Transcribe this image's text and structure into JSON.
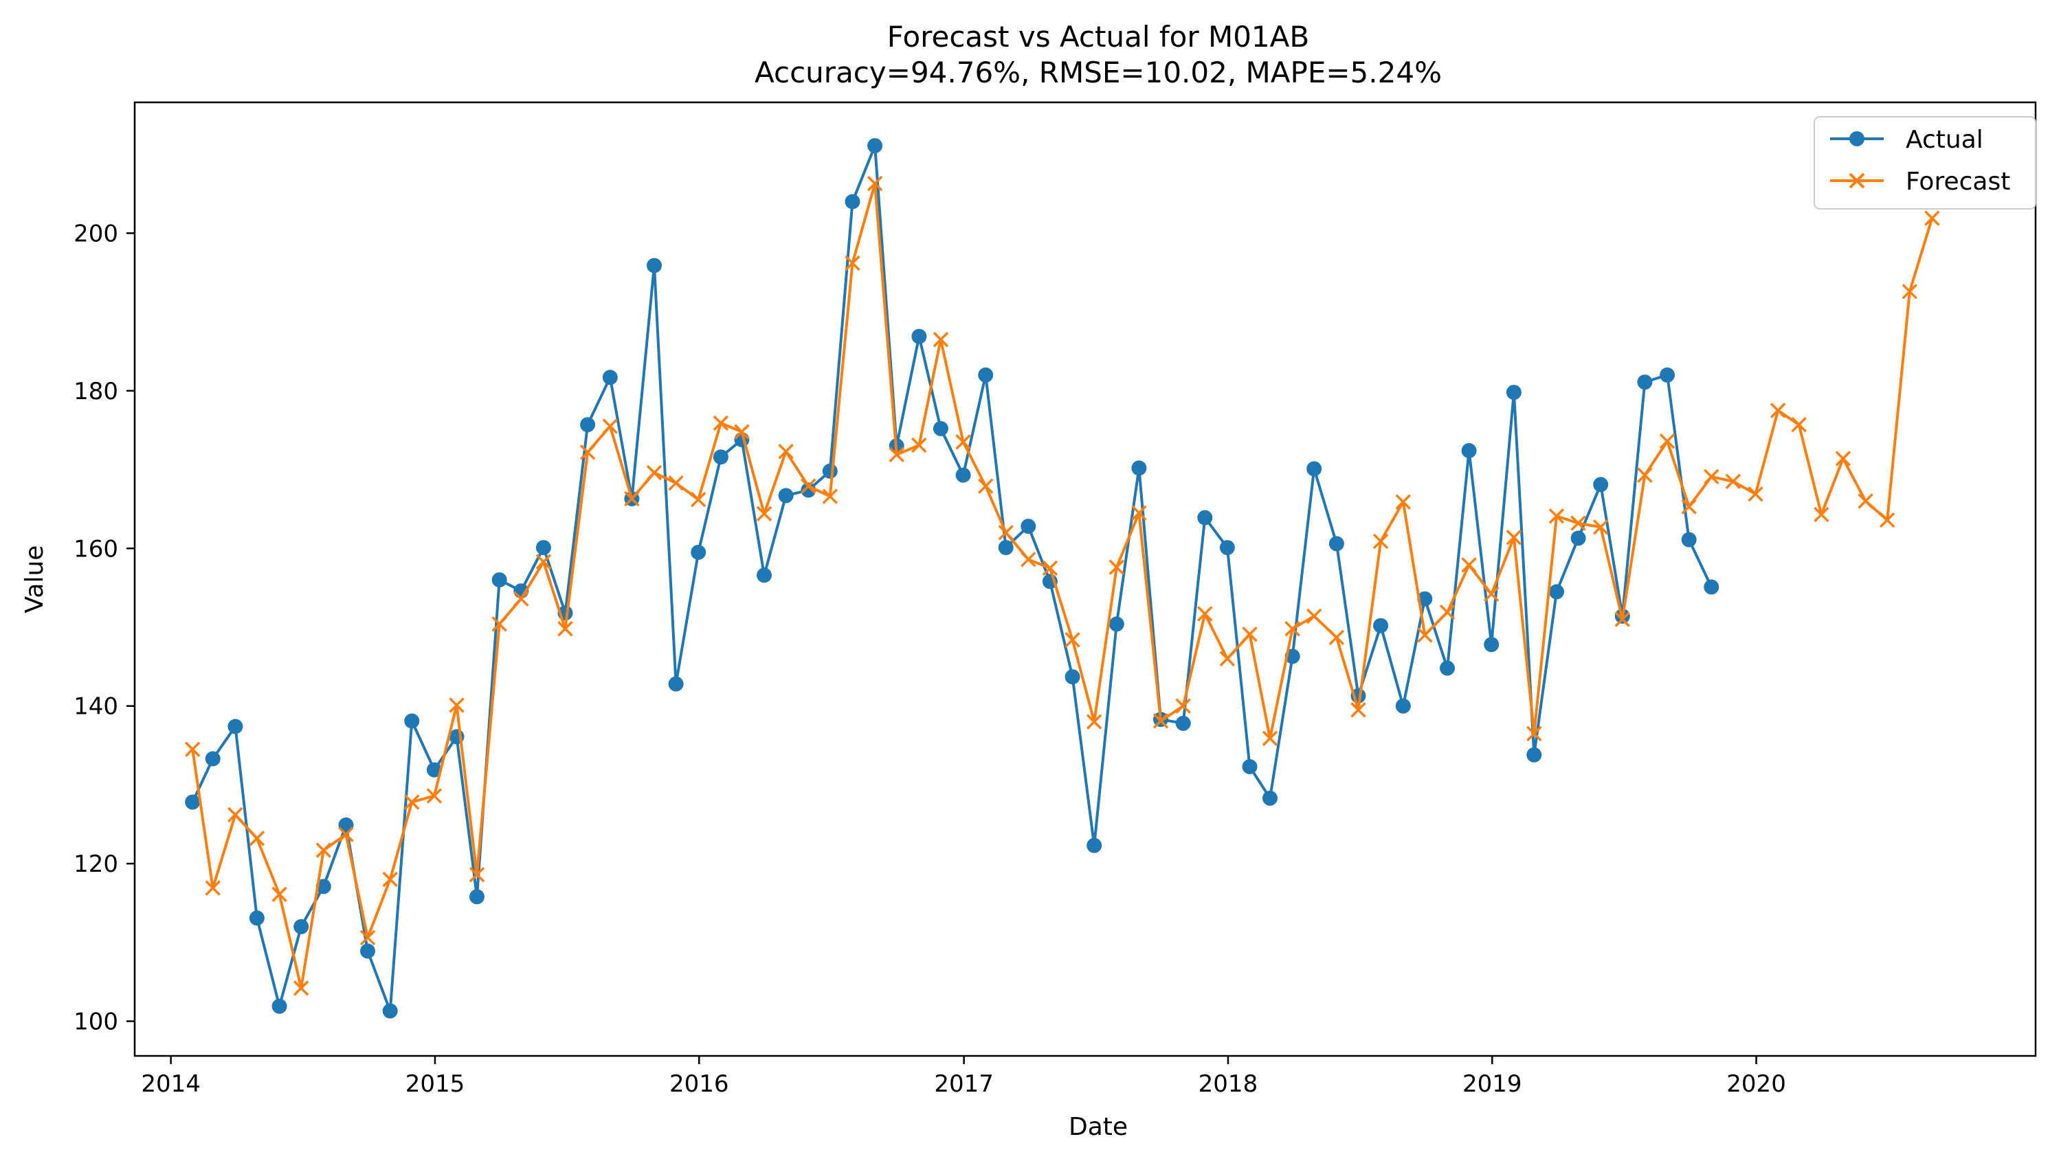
{
  "chart_data": {
    "type": "line",
    "title": "Forecast vs Actual for M01AB",
    "subtitle": "Accuracy=94.76%, RMSE=10.02, MAPE=5.24%",
    "xlabel": "Date",
    "ylabel": "Value",
    "xlim": [
      "2013-11-12",
      "2021-01-21"
    ],
    "ylim": [
      95.6,
      216.6
    ],
    "x_ticks": [
      "2014",
      "2015",
      "2016",
      "2017",
      "2018",
      "2019",
      "2020"
    ],
    "y_ticks": [
      100,
      120,
      140,
      160,
      180,
      200
    ],
    "grid": false,
    "legend_position": "top-right",
    "series": [
      {
        "name": "Actual",
        "marker": "circle",
        "color": "#1f77b4",
        "x": [
          "2014-01-31",
          "2014-02-28",
          "2014-03-31",
          "2014-04-30",
          "2014-05-31",
          "2014-06-30",
          "2014-07-31",
          "2014-08-31",
          "2014-09-30",
          "2014-10-31",
          "2014-11-30",
          "2014-12-31",
          "2015-01-31",
          "2015-02-28",
          "2015-03-31",
          "2015-04-30",
          "2015-05-31",
          "2015-06-30",
          "2015-07-31",
          "2015-08-31",
          "2015-09-30",
          "2015-10-31",
          "2015-11-30",
          "2015-12-31",
          "2016-01-31",
          "2016-02-29",
          "2016-03-31",
          "2016-04-30",
          "2016-05-31",
          "2016-06-30",
          "2016-07-31",
          "2016-08-31",
          "2016-09-30",
          "2016-10-31",
          "2016-11-30",
          "2016-12-31",
          "2017-01-31",
          "2017-02-28",
          "2017-03-31",
          "2017-04-30",
          "2017-05-31",
          "2017-06-30",
          "2017-07-31",
          "2017-08-31",
          "2017-09-30",
          "2017-10-31",
          "2017-11-30",
          "2017-12-31",
          "2018-01-31",
          "2018-02-28",
          "2018-03-31",
          "2018-04-30",
          "2018-05-31",
          "2018-06-30",
          "2018-07-31",
          "2018-08-31",
          "2018-09-30",
          "2018-10-31",
          "2018-11-30",
          "2018-12-31",
          "2019-01-31",
          "2019-02-28",
          "2019-03-31",
          "2019-04-30",
          "2019-05-31",
          "2019-06-30",
          "2019-07-31",
          "2019-08-31",
          "2019-09-30",
          "2019-10-31"
        ],
        "values": [
          127.8,
          133.3,
          137.4,
          113.1,
          101.9,
          112.0,
          117.1,
          124.9,
          108.9,
          101.3,
          138.1,
          131.9,
          136.1,
          115.8,
          156.0,
          154.6,
          160.1,
          151.8,
          175.7,
          181.7,
          166.3,
          195.9,
          142.8,
          159.5,
          171.6,
          173.8,
          156.6,
          166.7,
          167.4,
          169.8,
          204.0,
          211.1,
          173.0,
          186.9,
          175.2,
          169.3,
          182.0,
          160.1,
          162.8,
          155.8,
          143.7,
          122.3,
          150.4,
          170.2,
          138.3,
          137.8,
          163.9,
          160.1,
          132.3,
          128.3,
          146.3,
          170.1,
          160.6,
          141.3,
          150.2,
          140.0,
          153.6,
          144.8,
          172.4,
          147.8,
          179.8,
          133.8,
          154.5,
          161.3,
          168.1,
          151.4,
          181.1,
          182.0,
          161.1,
          155.1
        ]
      },
      {
        "name": "Forecast",
        "marker": "x",
        "color": "#ff7f0e",
        "x": [
          "2014-01-31",
          "2014-02-28",
          "2014-03-31",
          "2014-04-30",
          "2014-05-31",
          "2014-06-30",
          "2014-07-31",
          "2014-08-31",
          "2014-09-30",
          "2014-10-31",
          "2014-11-30",
          "2014-12-31",
          "2015-01-31",
          "2015-02-28",
          "2015-03-31",
          "2015-04-30",
          "2015-05-31",
          "2015-06-30",
          "2015-07-31",
          "2015-08-31",
          "2015-09-30",
          "2015-10-31",
          "2015-11-30",
          "2015-12-31",
          "2016-01-31",
          "2016-02-29",
          "2016-03-31",
          "2016-04-30",
          "2016-05-31",
          "2016-06-30",
          "2016-07-31",
          "2016-08-31",
          "2016-09-30",
          "2016-10-31",
          "2016-11-30",
          "2016-12-31",
          "2017-01-31",
          "2017-02-28",
          "2017-03-31",
          "2017-04-30",
          "2017-05-31",
          "2017-06-30",
          "2017-07-31",
          "2017-08-31",
          "2017-09-30",
          "2017-10-31",
          "2017-11-30",
          "2017-12-31",
          "2018-01-31",
          "2018-02-28",
          "2018-03-31",
          "2018-04-30",
          "2018-05-31",
          "2018-06-30",
          "2018-07-31",
          "2018-08-31",
          "2018-09-30",
          "2018-10-31",
          "2018-11-30",
          "2018-12-31",
          "2019-01-31",
          "2019-02-28",
          "2019-03-31",
          "2019-04-30",
          "2019-05-31",
          "2019-06-30",
          "2019-07-31",
          "2019-08-31",
          "2019-09-30",
          "2019-10-31",
          "2019-11-30",
          "2019-12-31",
          "2020-01-31",
          "2020-02-29",
          "2020-03-31",
          "2020-04-30",
          "2020-05-31",
          "2020-06-30",
          "2020-07-31",
          "2020-08-31"
        ],
        "values": [
          134.5,
          116.9,
          126.2,
          123.2,
          116.1,
          104.2,
          121.7,
          123.7,
          110.6,
          118.0,
          127.8,
          128.6,
          140.1,
          118.6,
          150.4,
          153.6,
          158.3,
          149.8,
          172.2,
          175.5,
          166.3,
          169.6,
          168.3,
          166.2,
          175.9,
          174.8,
          164.4,
          172.3,
          167.9,
          166.6,
          196.2,
          206.3,
          171.9,
          173.1,
          186.5,
          173.5,
          167.9,
          162.0,
          158.6,
          157.5,
          148.4,
          138.0,
          157.6,
          164.5,
          138.1,
          140.0,
          151.7,
          146.0,
          149.1,
          135.9,
          149.8,
          151.4,
          148.7,
          139.5,
          160.9,
          165.9,
          149.0,
          151.9,
          157.9,
          154.2,
          161.4,
          136.5,
          164.1,
          163.2,
          162.7,
          151.0,
          169.3,
          173.6,
          165.3,
          169.1,
          168.5,
          166.9,
          177.5,
          175.7,
          164.3,
          171.4,
          166.0,
          163.6,
          192.6,
          201.9
        ]
      }
    ]
  }
}
